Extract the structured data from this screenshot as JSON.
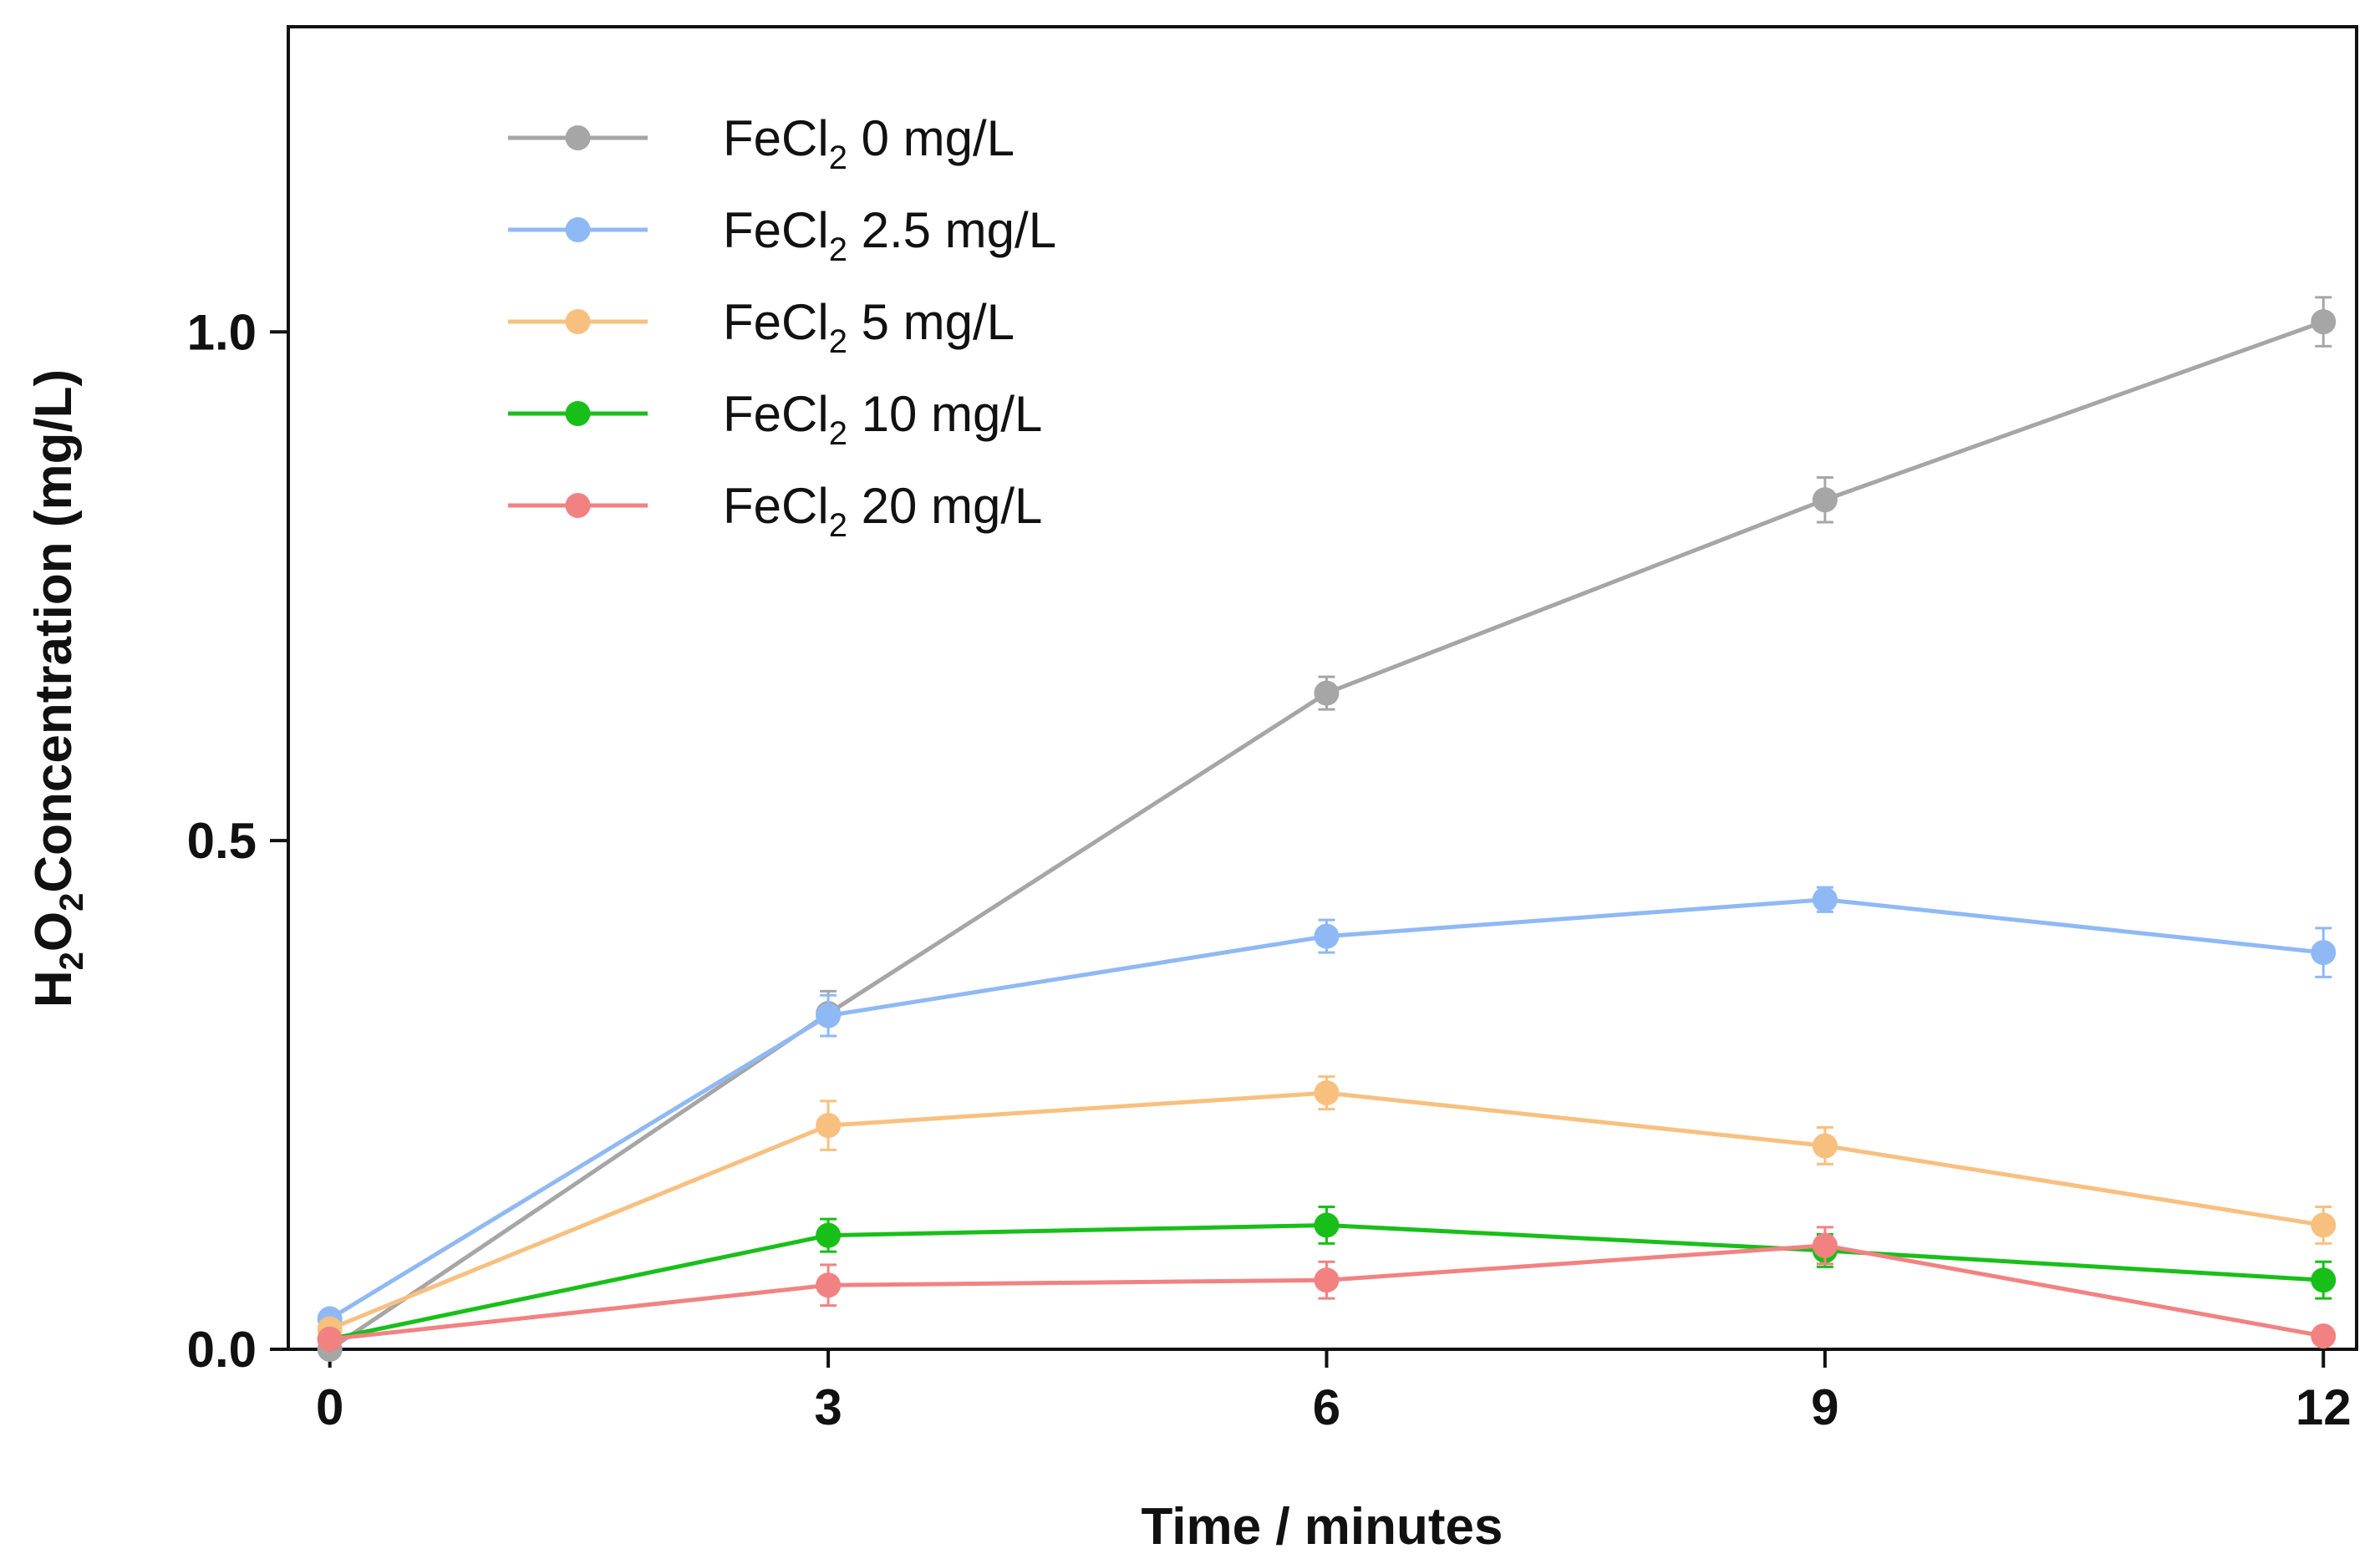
{
  "chart_data": {
    "type": "line",
    "title": "",
    "xlabel": "Time / minutes",
    "ylabel": {
      "prefix": "H",
      "sub1": "2",
      "mid": "O",
      "sub2": "2",
      "suffix": "Concentration (mg/L)"
    },
    "x": [
      0,
      3,
      6,
      9,
      12
    ],
    "x_ticks": [
      "0",
      "3",
      "6",
      "9",
      "12"
    ],
    "y_ticks": [
      "0.0",
      "0.5",
      "1.0"
    ],
    "y_tick_values": [
      0.0,
      0.5,
      1.0
    ],
    "xlim": [
      -0.25,
      12.2
    ],
    "ylim": [
      0.0,
      1.3
    ],
    "legend_position": "top-left",
    "series": [
      {
        "name": "FeCl2 0 mg/L",
        "label_main": "FeCl",
        "label_sub": "2",
        "label_rest": " 0 mg/L",
        "color": "#a6a6a6",
        "values": [
          0.0,
          0.33,
          0.645,
          0.835,
          1.01
        ],
        "errors": [
          0.0,
          0.022,
          0.016,
          0.022,
          0.024
        ]
      },
      {
        "name": "FeCl2 2.5 mg/L",
        "label_main": "FeCl",
        "label_sub": "2",
        "label_rest": " 2.5 mg/L",
        "color": "#8fb9f5",
        "values": [
          0.03,
          0.328,
          0.406,
          0.442,
          0.39
        ],
        "errors": [
          0.0,
          0.02,
          0.016,
          0.012,
          0.024
        ]
      },
      {
        "name": "FeCl2 5 mg/L",
        "label_main": "FeCl",
        "label_sub": "2",
        "label_rest": " 5 mg/L",
        "color": "#f8c07f",
        "values": [
          0.02,
          0.22,
          0.252,
          0.2,
          0.122
        ],
        "errors": [
          0.0,
          0.024,
          0.016,
          0.018,
          0.018
        ]
      },
      {
        "name": "FeCl2 10 mg/L",
        "label_main": "FeCl",
        "label_sub": "2",
        "label_rest": " 10 mg/L",
        "color": "#19bf19",
        "values": [
          0.01,
          0.112,
          0.122,
          0.097,
          0.068
        ],
        "errors": [
          0.0,
          0.016,
          0.018,
          0.016,
          0.018
        ]
      },
      {
        "name": "FeCl2 20 mg/L",
        "label_main": "FeCl",
        "label_sub": "2",
        "label_rest": " 20 mg/L",
        "color": "#f28282",
        "values": [
          0.01,
          0.063,
          0.068,
          0.102,
          0.013
        ],
        "errors": [
          0.0,
          0.02,
          0.018,
          0.018,
          0.0
        ]
      }
    ]
  }
}
